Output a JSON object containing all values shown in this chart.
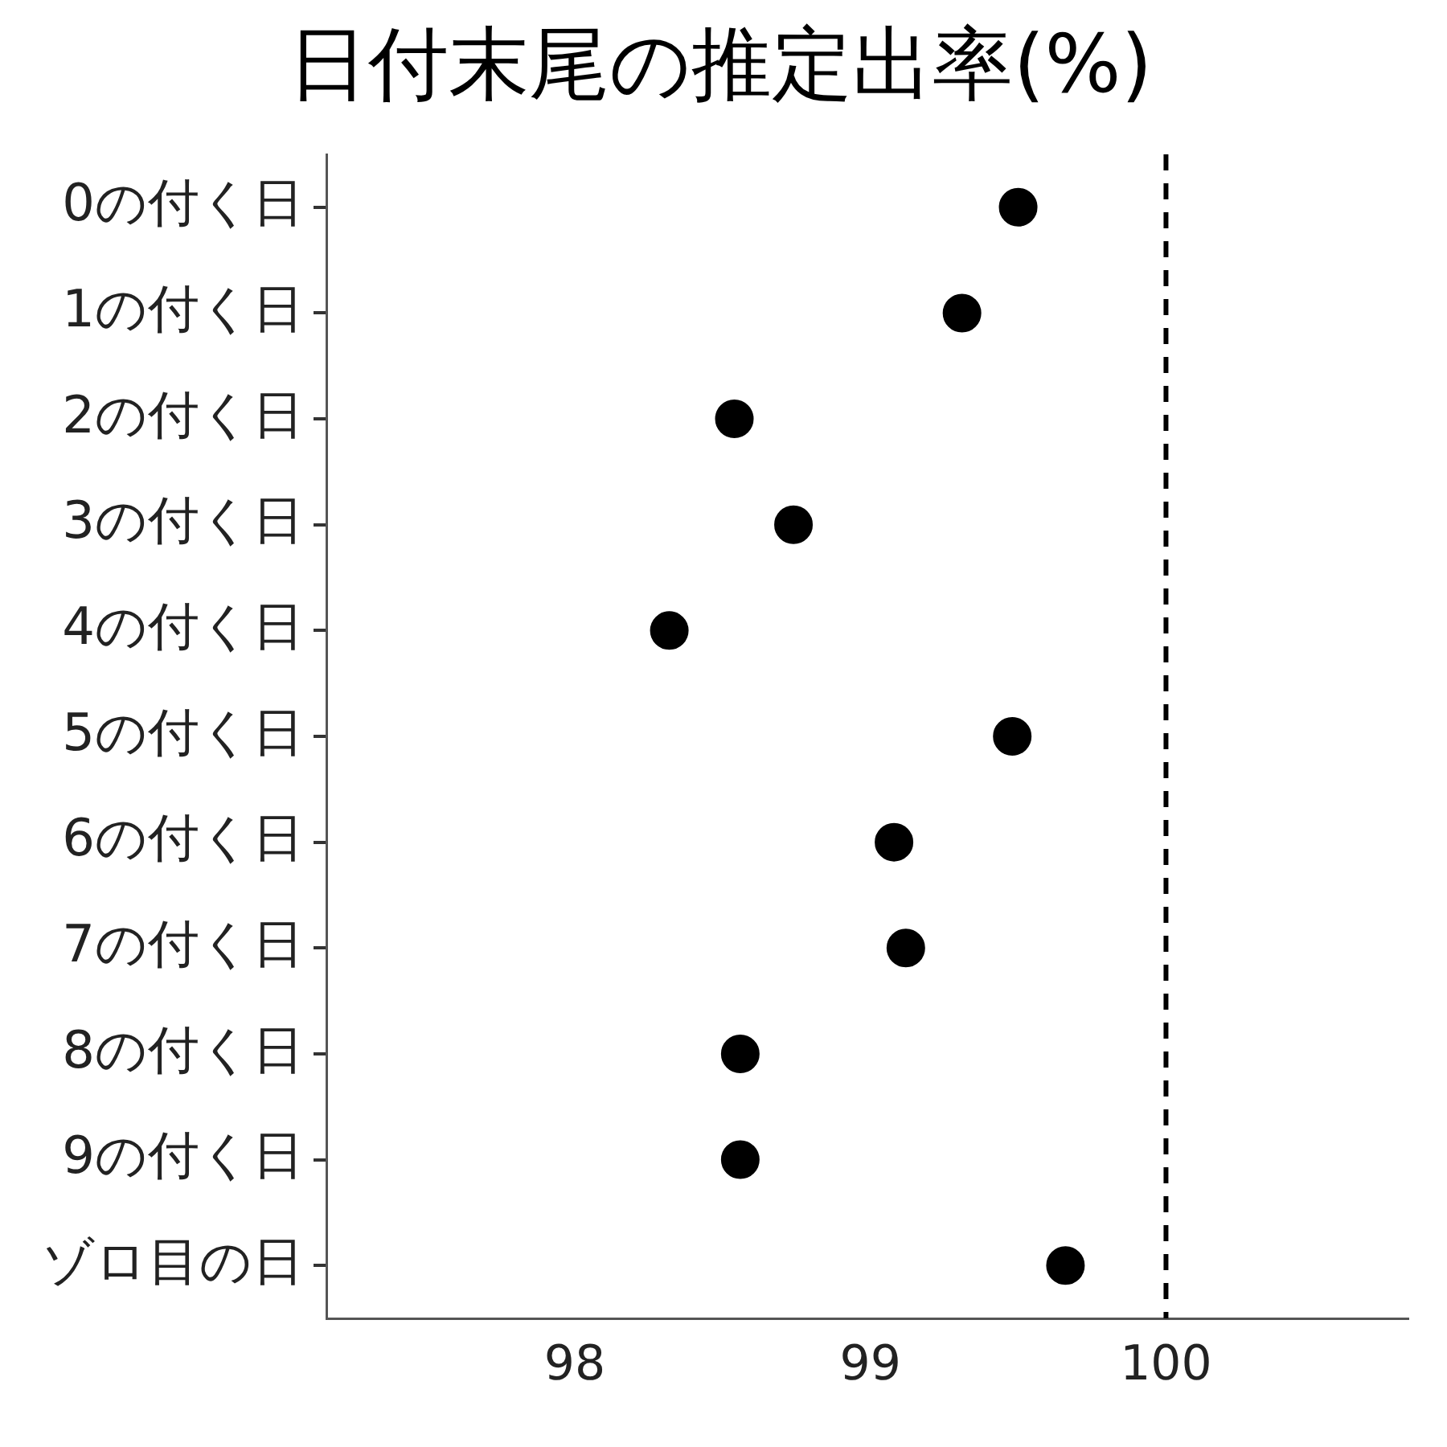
{
  "chart_data": {
    "type": "scatter",
    "title": "日付末尾の推定出率(%)",
    "orientation": "horizontal",
    "categories": [
      "0の付く日",
      "1の付く日",
      "2の付く日",
      "3の付く日",
      "4の付く日",
      "5の付く日",
      "6の付く日",
      "7の付く日",
      "8の付く日",
      "9の付く日",
      "ゾロ目の日"
    ],
    "values": [
      99.5,
      99.31,
      98.54,
      98.74,
      98.32,
      99.48,
      99.08,
      99.12,
      98.56,
      98.56,
      99.66
    ],
    "color": "#000000",
    "marker": "circle",
    "xlim": [
      97.16,
      100.82
    ],
    "xticks": [
      98,
      99,
      100
    ],
    "ref_lines": [
      {
        "axis": "x",
        "value": 100,
        "line_style": "dashed",
        "color": "#000000"
      }
    ],
    "grid": false,
    "legend": false
  }
}
